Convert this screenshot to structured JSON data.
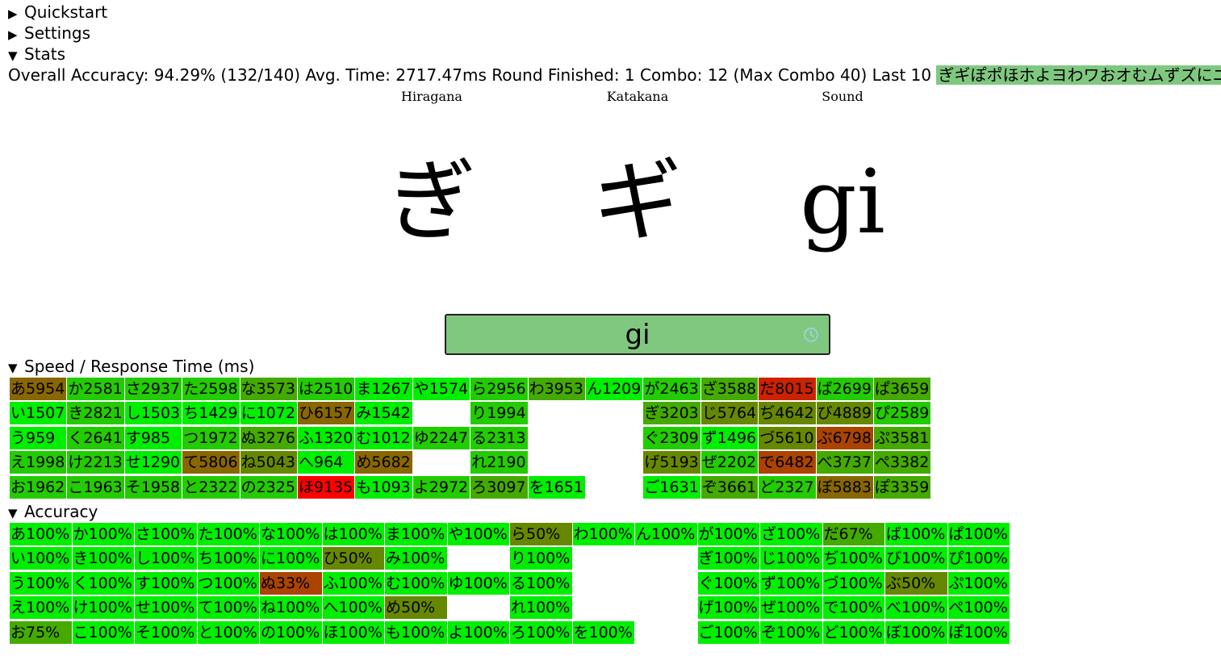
{
  "sections": {
    "quickstart": {
      "marker": "▶",
      "label": "Quickstart"
    },
    "settings": {
      "marker": "▶",
      "label": "Settings"
    },
    "stats": {
      "marker": "▼",
      "label": "Stats"
    },
    "speed": {
      "marker": "▼",
      "label": "Speed / Response Time (ms)"
    },
    "accuracy": {
      "marker": "▼",
      "label": "Accuracy"
    }
  },
  "stats": {
    "accuracy_label": "Overall Accuracy:",
    "accuracy_value": "94.29% (132/140)",
    "avg_time_label": "Avg. Time:",
    "avg_time_value": "2717.47ms",
    "round_label": "Round Finished:",
    "round_value": "1",
    "combo_label": "Combo:",
    "combo_value": "12 (Max Combo 40)",
    "last10_label": "Last 10",
    "last10_value": "ぎギぽポほホよヨわワおオむムずズにニびビ",
    "last10_color": "#80c880"
  },
  "prompt": {
    "hiragana_label": "Hiragana",
    "katakana_label": "Katakana",
    "sound_label": "Sound",
    "hiragana": "ぎ",
    "katakana": "ギ",
    "sound": "gi"
  },
  "answer": {
    "value": "gi",
    "bg_color": "#80c880",
    "icon": "clock-icon"
  },
  "colors": {
    "c1": "#00ee00",
    "c2": "#22cc00",
    "c3": "#44aa00",
    "c4": "#668800",
    "c5": "#886600",
    "c6": "#aa4400",
    "c7": "#cc2200",
    "c8": "#ff0000"
  },
  "speed_grid": {
    "rows": [
      [
        {
          "t": "あ5954",
          "c": "c5"
        },
        {
          "t": "か2581",
          "c": "c2"
        },
        {
          "t": "さ2937",
          "c": "c2"
        },
        {
          "t": "た2598",
          "c": "c2"
        },
        {
          "t": "な3573",
          "c": "c3"
        },
        {
          "t": "は2510",
          "c": "c2"
        },
        {
          "t": "ま1267",
          "c": "c1"
        },
        {
          "t": "や1574",
          "c": "c1"
        },
        {
          "t": "ら2956",
          "c": "c2"
        },
        {
          "t": "わ3953",
          "c": "c3"
        },
        {
          "t": "ん1209",
          "c": "c1"
        },
        {
          "t": "が2463",
          "c": "c2"
        },
        {
          "t": "ざ3588",
          "c": "c3"
        },
        {
          "t": "だ8015",
          "c": "c7"
        },
        {
          "t": "ば2699",
          "c": "c2"
        },
        {
          "t": "ぱ3659",
          "c": "c3"
        }
      ],
      [
        {
          "t": "い1507",
          "c": "c1"
        },
        {
          "t": "き2821",
          "c": "c2"
        },
        {
          "t": "し1503",
          "c": "c1"
        },
        {
          "t": "ち1429",
          "c": "c1"
        },
        {
          "t": "に1072",
          "c": "c1"
        },
        {
          "t": "ひ6157",
          "c": "c5"
        },
        {
          "t": "み1542",
          "c": "c1"
        },
        null,
        {
          "t": "り1994",
          "c": "c2"
        },
        null,
        null,
        {
          "t": "ぎ3203",
          "c": "c3"
        },
        {
          "t": "じ5764",
          "c": "c4"
        },
        {
          "t": "ぢ4642",
          "c": "c4"
        },
        {
          "t": "び4889",
          "c": "c4"
        },
        {
          "t": "ぴ2589",
          "c": "c2"
        }
      ],
      [
        {
          "t": "う959",
          "c": "c1"
        },
        {
          "t": "く2641",
          "c": "c2"
        },
        {
          "t": "す985",
          "c": "c1"
        },
        {
          "t": "つ1972",
          "c": "c2"
        },
        {
          "t": "ぬ3276",
          "c": "c3"
        },
        {
          "t": "ふ1320",
          "c": "c1"
        },
        {
          "t": "む1012",
          "c": "c1"
        },
        {
          "t": "ゆ2247",
          "c": "c2"
        },
        {
          "t": "る2313",
          "c": "c2"
        },
        null,
        null,
        {
          "t": "ぐ2309",
          "c": "c2"
        },
        {
          "t": "ず1496",
          "c": "c1"
        },
        {
          "t": "づ5610",
          "c": "c4"
        },
        {
          "t": "ぶ6798",
          "c": "c6"
        },
        {
          "t": "ぷ3581",
          "c": "c3"
        }
      ],
      [
        {
          "t": "え1998",
          "c": "c2"
        },
        {
          "t": "け2213",
          "c": "c2"
        },
        {
          "t": "せ1290",
          "c": "c1"
        },
        {
          "t": "て5806",
          "c": "c5"
        },
        {
          "t": "ね5043",
          "c": "c4"
        },
        {
          "t": "へ964",
          "c": "c1"
        },
        {
          "t": "め5682",
          "c": "c5"
        },
        null,
        {
          "t": "れ2190",
          "c": "c2"
        },
        null,
        null,
        {
          "t": "げ5193",
          "c": "c4"
        },
        {
          "t": "ぜ2202",
          "c": "c2"
        },
        {
          "t": "で6482",
          "c": "c6"
        },
        {
          "t": "べ3737",
          "c": "c3"
        },
        {
          "t": "ぺ3382",
          "c": "c3"
        }
      ],
      [
        {
          "t": "お1962",
          "c": "c2"
        },
        {
          "t": "こ1963",
          "c": "c2"
        },
        {
          "t": "そ1958",
          "c": "c2"
        },
        {
          "t": "と2322",
          "c": "c2"
        },
        {
          "t": "の2325",
          "c": "c2"
        },
        {
          "t": "ほ9135",
          "c": "c8"
        },
        {
          "t": "も1093",
          "c": "c1"
        },
        {
          "t": "よ2972",
          "c": "c2"
        },
        {
          "t": "ろ3097",
          "c": "c3"
        },
        {
          "t": "を1651",
          "c": "c1"
        },
        null,
        {
          "t": "ご1631",
          "c": "c1"
        },
        {
          "t": "ぞ3661",
          "c": "c3"
        },
        {
          "t": "ど2327",
          "c": "c2"
        },
        {
          "t": "ぼ5883",
          "c": "c5"
        },
        {
          "t": "ぽ3359",
          "c": "c3"
        }
      ]
    ]
  },
  "accuracy_grid": {
    "rows": [
      [
        {
          "t": "あ100%",
          "c": "c1"
        },
        {
          "t": "か100%",
          "c": "c1"
        },
        {
          "t": "さ100%",
          "c": "c1"
        },
        {
          "t": "た100%",
          "c": "c1"
        },
        {
          "t": "な100%",
          "c": "c1"
        },
        {
          "t": "は100%",
          "c": "c1"
        },
        {
          "t": "ま100%",
          "c": "c1"
        },
        {
          "t": "や100%",
          "c": "c1"
        },
        {
          "t": "ら50%",
          "c": "c4"
        },
        {
          "t": "わ100%",
          "c": "c1"
        },
        {
          "t": "ん100%",
          "c": "c1"
        },
        {
          "t": "が100%",
          "c": "c1"
        },
        {
          "t": "ざ100%",
          "c": "c1"
        },
        {
          "t": "だ67%",
          "c": "c3"
        },
        {
          "t": "ば100%",
          "c": "c1"
        },
        {
          "t": "ぱ100%",
          "c": "c1"
        }
      ],
      [
        {
          "t": "い100%",
          "c": "c1"
        },
        {
          "t": "き100%",
          "c": "c1"
        },
        {
          "t": "し100%",
          "c": "c1"
        },
        {
          "t": "ち100%",
          "c": "c1"
        },
        {
          "t": "に100%",
          "c": "c1"
        },
        {
          "t": "ひ50%",
          "c": "c4"
        },
        {
          "t": "み100%",
          "c": "c1"
        },
        null,
        {
          "t": "り100%",
          "c": "c1"
        },
        null,
        null,
        {
          "t": "ぎ100%",
          "c": "c1"
        },
        {
          "t": "じ100%",
          "c": "c1"
        },
        {
          "t": "ぢ100%",
          "c": "c1"
        },
        {
          "t": "び100%",
          "c": "c1"
        },
        {
          "t": "ぴ100%",
          "c": "c1"
        }
      ],
      [
        {
          "t": "う100%",
          "c": "c1"
        },
        {
          "t": "く100%",
          "c": "c1"
        },
        {
          "t": "す100%",
          "c": "c1"
        },
        {
          "t": "つ100%",
          "c": "c1"
        },
        {
          "t": "ぬ33%",
          "c": "c6"
        },
        {
          "t": "ふ100%",
          "c": "c1"
        },
        {
          "t": "む100%",
          "c": "c1"
        },
        {
          "t": "ゆ100%",
          "c": "c1"
        },
        {
          "t": "る100%",
          "c": "c1"
        },
        null,
        null,
        {
          "t": "ぐ100%",
          "c": "c1"
        },
        {
          "t": "ず100%",
          "c": "c1"
        },
        {
          "t": "づ100%",
          "c": "c1"
        },
        {
          "t": "ぶ50%",
          "c": "c4"
        },
        {
          "t": "ぷ100%",
          "c": "c1"
        }
      ],
      [
        {
          "t": "え100%",
          "c": "c1"
        },
        {
          "t": "け100%",
          "c": "c1"
        },
        {
          "t": "せ100%",
          "c": "c1"
        },
        {
          "t": "て100%",
          "c": "c1"
        },
        {
          "t": "ね100%",
          "c": "c1"
        },
        {
          "t": "へ100%",
          "c": "c1"
        },
        {
          "t": "め50%",
          "c": "c4"
        },
        null,
        {
          "t": "れ100%",
          "c": "c1"
        },
        null,
        null,
        {
          "t": "げ100%",
          "c": "c1"
        },
        {
          "t": "ぜ100%",
          "c": "c1"
        },
        {
          "t": "で100%",
          "c": "c1"
        },
        {
          "t": "べ100%",
          "c": "c1"
        },
        {
          "t": "ぺ100%",
          "c": "c1"
        }
      ],
      [
        {
          "t": "お75%",
          "c": "c3"
        },
        {
          "t": "こ100%",
          "c": "c1"
        },
        {
          "t": "そ100%",
          "c": "c1"
        },
        {
          "t": "と100%",
          "c": "c1"
        },
        {
          "t": "の100%",
          "c": "c1"
        },
        {
          "t": "ほ100%",
          "c": "c1"
        },
        {
          "t": "も100%",
          "c": "c1"
        },
        {
          "t": "よ100%",
          "c": "c1"
        },
        {
          "t": "ろ100%",
          "c": "c1"
        },
        {
          "t": "を100%",
          "c": "c1"
        },
        null,
        {
          "t": "ご100%",
          "c": "c1"
        },
        {
          "t": "ぞ100%",
          "c": "c1"
        },
        {
          "t": "ど100%",
          "c": "c1"
        },
        {
          "t": "ぼ100%",
          "c": "c1"
        },
        {
          "t": "ぽ100%",
          "c": "c1"
        }
      ]
    ]
  }
}
